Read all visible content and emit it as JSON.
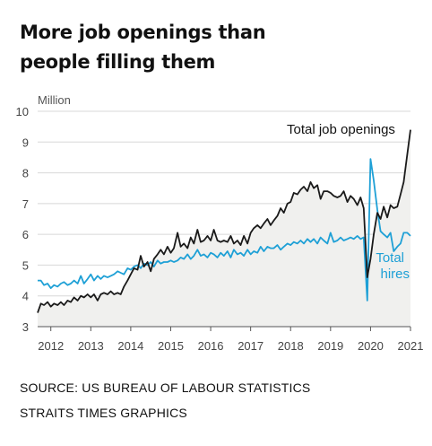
{
  "title_line1": "More job openings than",
  "title_line2": "people filling them",
  "source_line1": "SOURCE: US BUREAU OF LABOUR STATISTICS",
  "source_line2": "STRAITS TIMES GRAPHICS",
  "chart_data": {
    "type": "line",
    "ylabel": "Million",
    "ylim": [
      3,
      10
    ],
    "yticks": [
      3,
      4,
      5,
      6,
      7,
      8,
      9,
      10
    ],
    "xlim": [
      2011.67,
      2021.0
    ],
    "xticks": [
      "2012",
      "2013",
      "2014",
      "2015",
      "2016",
      "2017",
      "2018",
      "2019",
      "2020",
      "2021"
    ],
    "grid": "horizontal",
    "colors": {
      "openings": "#1a1a1a",
      "hires": "#1ea0d6",
      "area": "#f0f0ee"
    },
    "series": [
      {
        "name": "Total job openings",
        "label": "Total job openings",
        "x": [
          2011.67,
          2011.75,
          2011.83,
          2011.92,
          2012.0,
          2012.08,
          2012.17,
          2012.25,
          2012.33,
          2012.42,
          2012.5,
          2012.58,
          2012.67,
          2012.75,
          2012.83,
          2012.92,
          2013.0,
          2013.08,
          2013.17,
          2013.25,
          2013.33,
          2013.42,
          2013.5,
          2013.58,
          2013.67,
          2013.75,
          2013.83,
          2013.92,
          2014.0,
          2014.08,
          2014.17,
          2014.25,
          2014.33,
          2014.42,
          2014.5,
          2014.58,
          2014.67,
          2014.75,
          2014.83,
          2014.92,
          2015.0,
          2015.08,
          2015.17,
          2015.25,
          2015.33,
          2015.42,
          2015.5,
          2015.58,
          2015.67,
          2015.75,
          2015.83,
          2015.92,
          2016.0,
          2016.08,
          2016.17,
          2016.25,
          2016.33,
          2016.42,
          2016.5,
          2016.58,
          2016.67,
          2016.75,
          2016.83,
          2016.92,
          2017.0,
          2017.08,
          2017.17,
          2017.25,
          2017.33,
          2017.42,
          2017.5,
          2017.58,
          2017.67,
          2017.75,
          2017.83,
          2017.92,
          2018.0,
          2018.08,
          2018.17,
          2018.25,
          2018.33,
          2018.42,
          2018.5,
          2018.58,
          2018.67,
          2018.75,
          2018.83,
          2018.92,
          2019.0,
          2019.08,
          2019.17,
          2019.25,
          2019.33,
          2019.42,
          2019.5,
          2019.58,
          2019.67,
          2019.75,
          2019.83,
          2019.92,
          2020.0,
          2020.08,
          2020.17,
          2020.25,
          2020.33,
          2020.42,
          2020.5,
          2020.58,
          2020.67,
          2020.75,
          2020.83,
          2020.92,
          2021.0
        ],
        "values": [
          3.45,
          3.75,
          3.7,
          3.8,
          3.65,
          3.75,
          3.7,
          3.8,
          3.7,
          3.85,
          3.8,
          3.95,
          3.85,
          4.0,
          3.95,
          4.05,
          3.95,
          4.05,
          3.85,
          4.05,
          4.1,
          4.05,
          4.15,
          4.05,
          4.1,
          4.05,
          4.3,
          4.5,
          4.7,
          4.9,
          4.85,
          5.3,
          4.95,
          5.1,
          4.8,
          5.2,
          5.35,
          5.5,
          5.35,
          5.6,
          5.4,
          5.55,
          6.05,
          5.6,
          5.7,
          5.55,
          5.9,
          5.7,
          6.15,
          5.75,
          5.8,
          5.95,
          5.8,
          6.15,
          5.8,
          5.75,
          5.8,
          5.75,
          5.95,
          5.7,
          5.8,
          5.65,
          5.95,
          5.7,
          6.05,
          6.2,
          6.3,
          6.2,
          6.35,
          6.5,
          6.3,
          6.45,
          6.6,
          6.85,
          6.7,
          7.0,
          7.05,
          7.35,
          7.3,
          7.45,
          7.55,
          7.4,
          7.7,
          7.5,
          7.6,
          7.15,
          7.4,
          7.4,
          7.35,
          7.25,
          7.2,
          7.25,
          7.4,
          7.05,
          7.25,
          7.15,
          6.95,
          7.2,
          6.85,
          4.6,
          5.2,
          6.0,
          6.7,
          6.5,
          6.9,
          6.55,
          6.95,
          6.85,
          6.9,
          7.3,
          7.7,
          8.6,
          9.4
        ]
      },
      {
        "name": "Total hires",
        "label": "Total hires",
        "x": [
          2011.67,
          2011.75,
          2011.83,
          2011.92,
          2012.0,
          2012.08,
          2012.17,
          2012.25,
          2012.33,
          2012.42,
          2012.5,
          2012.58,
          2012.67,
          2012.75,
          2012.83,
          2012.92,
          2013.0,
          2013.08,
          2013.17,
          2013.25,
          2013.33,
          2013.42,
          2013.5,
          2013.58,
          2013.67,
          2013.75,
          2013.83,
          2013.92,
          2014.0,
          2014.08,
          2014.17,
          2014.25,
          2014.33,
          2014.42,
          2014.5,
          2014.58,
          2014.67,
          2014.75,
          2014.83,
          2014.92,
          2015.0,
          2015.08,
          2015.17,
          2015.25,
          2015.33,
          2015.42,
          2015.5,
          2015.58,
          2015.67,
          2015.75,
          2015.83,
          2015.92,
          2016.0,
          2016.08,
          2016.17,
          2016.25,
          2016.33,
          2016.42,
          2016.5,
          2016.58,
          2016.67,
          2016.75,
          2016.83,
          2016.92,
          2017.0,
          2017.08,
          2017.17,
          2017.25,
          2017.33,
          2017.42,
          2017.5,
          2017.58,
          2017.67,
          2017.75,
          2017.83,
          2017.92,
          2018.0,
          2018.08,
          2018.17,
          2018.25,
          2018.33,
          2018.42,
          2018.5,
          2018.58,
          2018.67,
          2018.75,
          2018.83,
          2018.92,
          2019.0,
          2019.08,
          2019.17,
          2019.25,
          2019.33,
          2019.42,
          2019.5,
          2019.58,
          2019.67,
          2019.75,
          2019.83,
          2019.92,
          2020.0,
          2020.08,
          2020.17,
          2020.25,
          2020.33,
          2020.42,
          2020.5,
          2020.58,
          2020.67,
          2020.75,
          2020.83,
          2020.92,
          2021.0
        ],
        "values": [
          4.5,
          4.5,
          4.35,
          4.4,
          4.25,
          4.35,
          4.3,
          4.4,
          4.45,
          4.35,
          4.4,
          4.5,
          4.4,
          4.65,
          4.4,
          4.55,
          4.7,
          4.5,
          4.65,
          4.55,
          4.65,
          4.6,
          4.65,
          4.7,
          4.8,
          4.75,
          4.7,
          4.9,
          4.85,
          4.95,
          5.0,
          4.9,
          5.05,
          5.0,
          5.1,
          4.95,
          5.15,
          5.05,
          5.1,
          5.1,
          5.15,
          5.1,
          5.15,
          5.25,
          5.2,
          5.35,
          5.2,
          5.3,
          5.5,
          5.3,
          5.35,
          5.25,
          5.4,
          5.35,
          5.25,
          5.4,
          5.3,
          5.45,
          5.25,
          5.5,
          5.35,
          5.4,
          5.3,
          5.5,
          5.35,
          5.45,
          5.4,
          5.6,
          5.45,
          5.6,
          5.55,
          5.55,
          5.65,
          5.5,
          5.6,
          5.7,
          5.65,
          5.75,
          5.7,
          5.8,
          5.7,
          5.85,
          5.75,
          5.85,
          5.7,
          5.9,
          5.8,
          5.7,
          6.05,
          5.75,
          5.8,
          5.9,
          5.8,
          5.85,
          5.9,
          5.85,
          5.95,
          5.85,
          5.9,
          3.85,
          8.45,
          7.75,
          6.8,
          6.1,
          6.0,
          5.9,
          6.05,
          5.45,
          5.6,
          5.7,
          6.05,
          6.05,
          5.95
        ]
      }
    ]
  }
}
